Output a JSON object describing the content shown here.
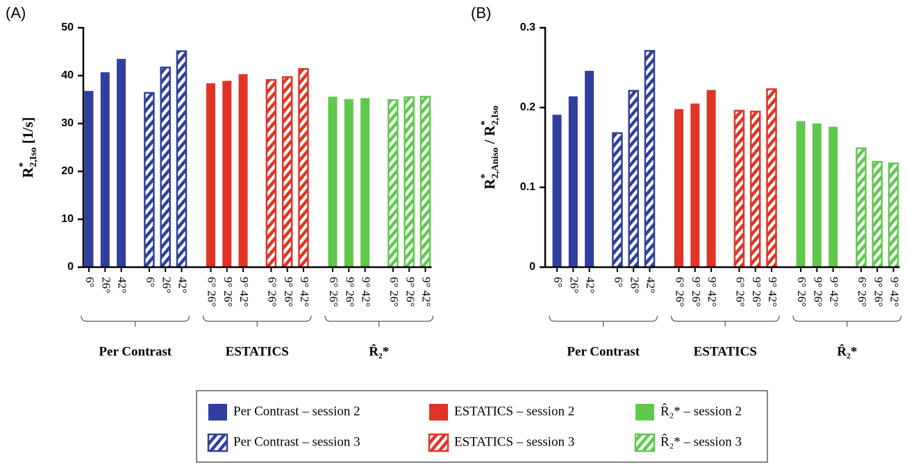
{
  "chart_data": [
    {
      "type": "bar",
      "panel_label": "(A)",
      "y_label": [
        {
          "text": "R"
        },
        {
          "text": "*",
          "pos": "sup"
        },
        {
          "text": "2,Iso",
          "pos": "sub"
        },
        {
          "text": " [1/s]"
        }
      ],
      "ylim": [
        0,
        50
      ],
      "yticks": [
        0,
        10,
        20,
        30,
        40,
        50
      ],
      "categories": [
        "6°",
        "26°",
        "42°",
        "6°",
        "26°",
        "42°",
        "6° 26°",
        "9° 26°",
        "9° 42°",
        "6° 26°",
        "9° 26°",
        "9° 42°",
        "6° 26°",
        "9° 26°",
        "9° 42°",
        "6° 26°",
        "9° 26°",
        "9° 42°"
      ],
      "groups": [
        "Per Contrast",
        "ESTATICS",
        "R̂₂*"
      ],
      "series": [
        {
          "name": "Per Contrast – session 2",
          "color": "#2e3f9e",
          "hatched": false,
          "values": [
            36.8,
            40.7,
            43.5,
            null,
            null,
            null,
            null,
            null,
            null,
            null,
            null,
            null,
            null,
            null,
            null,
            null,
            null,
            null
          ]
        },
        {
          "name": "Per Contrast – session 3",
          "color": "#2e3f9e",
          "hatched": true,
          "values": [
            null,
            null,
            null,
            36.4,
            41.7,
            45.1,
            null,
            null,
            null,
            null,
            null,
            null,
            null,
            null,
            null,
            null,
            null,
            null
          ]
        },
        {
          "name": "ESTATICS – session 2",
          "color": "#e03426",
          "hatched": false,
          "values": [
            null,
            null,
            null,
            null,
            null,
            null,
            38.4,
            38.9,
            40.3,
            null,
            null,
            null,
            null,
            null,
            null,
            null,
            null,
            null
          ]
        },
        {
          "name": "ESTATICS – session 3",
          "color": "#e03426",
          "hatched": true,
          "values": [
            null,
            null,
            null,
            null,
            null,
            null,
            null,
            null,
            null,
            39.1,
            39.7,
            41.4,
            null,
            null,
            null,
            null,
            null,
            null
          ]
        },
        {
          "name": "R̂₂* – session 2",
          "color": "#5ec94d",
          "hatched": false,
          "values": [
            null,
            null,
            null,
            null,
            null,
            null,
            null,
            null,
            null,
            null,
            null,
            null,
            35.6,
            35.1,
            35.3,
            null,
            null,
            null
          ]
        },
        {
          "name": "R̂₂* – session 3",
          "color": "#5ec94d",
          "hatched": true,
          "values": [
            null,
            null,
            null,
            null,
            null,
            null,
            null,
            null,
            null,
            null,
            null,
            null,
            null,
            null,
            null,
            34.9,
            35.5,
            35.6
          ]
        }
      ]
    },
    {
      "type": "bar",
      "panel_label": "(B)",
      "y_label": [
        {
          "text": "R"
        },
        {
          "text": "*",
          "pos": "sup"
        },
        {
          "text": "2,Aniso",
          "pos": "sub"
        },
        {
          "text": " / R"
        },
        {
          "text": "*",
          "pos": "sup"
        },
        {
          "text": "2,Iso",
          "pos": "sub"
        }
      ],
      "ylim": [
        0,
        0.3
      ],
      "yticks": [
        0,
        0.1,
        0.2,
        0.3
      ],
      "categories": [
        "6°",
        "26°",
        "42°",
        "6°",
        "26°",
        "42°",
        "6° 26°",
        "9° 26°",
        "9° 42°",
        "6° 26°",
        "9° 26°",
        "9° 42°",
        "6° 26°",
        "9° 26°",
        "9° 42°",
        "6° 26°",
        "9° 26°",
        "9° 42°"
      ],
      "groups": [
        "Per Contrast",
        "ESTATICS",
        "R̂₂*"
      ],
      "series": [
        {
          "color": "#2e3f9e",
          "hatched": false,
          "values": [
            0.191,
            0.214,
            0.246,
            null,
            null,
            null,
            null,
            null,
            null,
            null,
            null,
            null,
            null,
            null,
            null,
            null,
            null,
            null
          ]
        },
        {
          "color": "#2e3f9e",
          "hatched": true,
          "values": [
            null,
            null,
            null,
            0.168,
            0.221,
            0.271,
            null,
            null,
            null,
            null,
            null,
            null,
            null,
            null,
            null,
            null,
            null,
            null
          ]
        },
        {
          "color": "#e03426",
          "hatched": false,
          "values": [
            null,
            null,
            null,
            null,
            null,
            null,
            0.198,
            0.205,
            0.222,
            null,
            null,
            null,
            null,
            null,
            null,
            null,
            null,
            null
          ]
        },
        {
          "color": "#e03426",
          "hatched": true,
          "values": [
            null,
            null,
            null,
            null,
            null,
            null,
            null,
            null,
            null,
            0.196,
            0.195,
            0.223,
            null,
            null,
            null,
            null,
            null,
            null
          ]
        },
        {
          "color": "#5ec94d",
          "hatched": false,
          "values": [
            null,
            null,
            null,
            null,
            null,
            null,
            null,
            null,
            null,
            null,
            null,
            null,
            0.183,
            0.18,
            0.176,
            null,
            null,
            null
          ]
        },
        {
          "color": "#5ec94d",
          "hatched": true,
          "values": [
            null,
            null,
            null,
            null,
            null,
            null,
            null,
            null,
            null,
            null,
            null,
            null,
            null,
            null,
            null,
            0.149,
            0.132,
            0.13
          ]
        }
      ]
    }
  ]
}
